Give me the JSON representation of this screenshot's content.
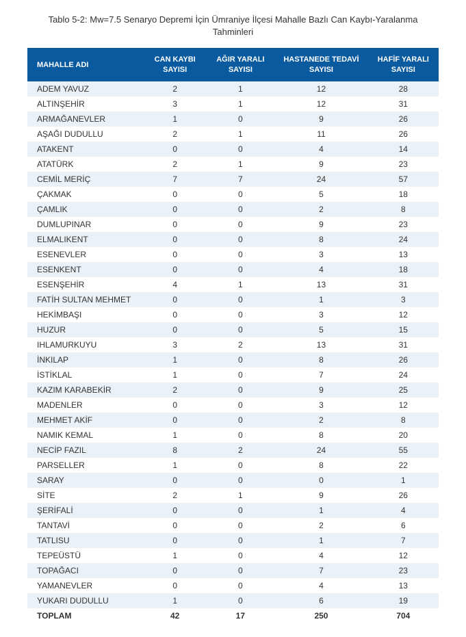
{
  "caption": "Tablo 5-2: Mw=7.5 Senaryo Depremi İçin Ümraniye İlçesi Mahalle Bazlı Can Kaybı-Yaralanma Tahminleri",
  "table": {
    "type": "table",
    "header_bg": "#0a5aa0",
    "header_fg": "#ffffff",
    "stripe_bg": "#eaf1f7",
    "plain_bg": "#ffffff",
    "text_color": "#333333",
    "columns": [
      "MAHALLE ADI",
      "CAN KAYBI SAYISI",
      "AĞIR YARALI SAYISI",
      "HASTANEDE TEDAVİ SAYISI",
      "HAFİF YARALI SAYISI"
    ],
    "rows": [
      [
        "ADEM YAVUZ",
        "2",
        "1",
        "12",
        "28"
      ],
      [
        "ALTINŞEHİR",
        "3",
        "1",
        "12",
        "31"
      ],
      [
        "ARMAĞANEVLER",
        "1",
        "0",
        "9",
        "26"
      ],
      [
        "AŞAĞI DUDULLU",
        "2",
        "1",
        "11",
        "26"
      ],
      [
        "ATAKENT",
        "0",
        "0",
        "4",
        "14"
      ],
      [
        "ATATÜRK",
        "2",
        "1",
        "9",
        "23"
      ],
      [
        "CEMİL MERİÇ",
        "7",
        "7",
        "24",
        "57"
      ],
      [
        "ÇAKMAK",
        "0",
        "0",
        "5",
        "18"
      ],
      [
        "ÇAMLIK",
        "0",
        "0",
        "2",
        "8"
      ],
      [
        "DUMLUPINAR",
        "0",
        "0",
        "9",
        "23"
      ],
      [
        "ELMALIKENT",
        "0",
        "0",
        "8",
        "24"
      ],
      [
        "ESENEVLER",
        "0",
        "0",
        "3",
        "13"
      ],
      [
        "ESENKENT",
        "0",
        "0",
        "4",
        "18"
      ],
      [
        "ESENŞEHİR",
        "4",
        "1",
        "13",
        "31"
      ],
      [
        "FATİH SULTAN MEHMET",
        "0",
        "0",
        "1",
        "3"
      ],
      [
        "HEKİMBAŞI",
        "0",
        "0",
        "3",
        "12"
      ],
      [
        "HUZUR",
        "0",
        "0",
        "5",
        "15"
      ],
      [
        "IHLAMURKUYU",
        "3",
        "2",
        "13",
        "31"
      ],
      [
        "İNKILAP",
        "1",
        "0",
        "8",
        "26"
      ],
      [
        "İSTİKLAL",
        "1",
        "0",
        "7",
        "24"
      ],
      [
        "KAZIM KARABEKİR",
        "2",
        "0",
        "9",
        "25"
      ],
      [
        "MADENLER",
        "0",
        "0",
        "3",
        "12"
      ],
      [
        "MEHMET AKİF",
        "0",
        "0",
        "2",
        "8"
      ],
      [
        "NAMIK KEMAL",
        "1",
        "0",
        "8",
        "20"
      ],
      [
        "NECİP FAZIL",
        "8",
        "2",
        "24",
        "55"
      ],
      [
        "PARSELLER",
        "1",
        "0",
        "8",
        "22"
      ],
      [
        "SARAY",
        "0",
        "0",
        "0",
        "1"
      ],
      [
        "SİTE",
        "2",
        "1",
        "9",
        "26"
      ],
      [
        "ŞERİFALİ",
        "0",
        "0",
        "1",
        "4"
      ],
      [
        "TANTAVİ",
        "0",
        "0",
        "2",
        "6"
      ],
      [
        "TATLISU",
        "0",
        "0",
        "1",
        "7"
      ],
      [
        "TEPEÜSTÜ",
        "1",
        "0",
        "4",
        "12"
      ],
      [
        "TOPAĞACI",
        "0",
        "0",
        "7",
        "23"
      ],
      [
        "YAMANEVLER",
        "0",
        "0",
        "4",
        "13"
      ],
      [
        "YUKARI DUDULLU",
        "1",
        "0",
        "6",
        "19"
      ]
    ],
    "total_row": [
      "TOPLAM",
      "42",
      "17",
      "250",
      "704"
    ]
  }
}
